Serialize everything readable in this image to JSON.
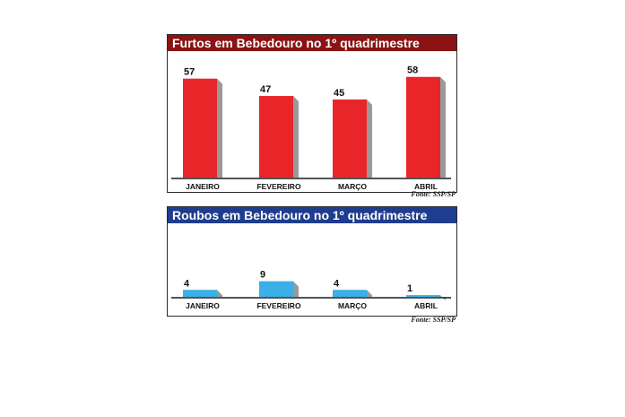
{
  "chart_data": [
    {
      "type": "bar",
      "title": "Furtos em Bebedouro no 1º quadrimestre",
      "categories": [
        "JANEIRO",
        "FEVEREIRO",
        "MARÇO",
        "ABRIL"
      ],
      "values": [
        57,
        47,
        45,
        58
      ],
      "source": "Fonte: SSP/SP",
      "ylim": [
        0,
        62
      ],
      "grid": false,
      "bar_color": "#e8262a",
      "shadow_color": "#9a9a9a",
      "header_color": "#8b1313"
    },
    {
      "type": "bar",
      "title": "Roubos em Bebedouro no 1º quadrimestre",
      "categories": [
        "JANEIRO",
        "FEVEREIRO",
        "MARÇO",
        "ABRIL"
      ],
      "values": [
        4,
        9,
        4,
        1
      ],
      "source": "Fonte: SSP/SP",
      "ylim": [
        0,
        62
      ],
      "grid": false,
      "bar_color": "#3ab0e6",
      "shadow_color": "#9a9a9a",
      "header_color": "#1f3d8f"
    }
  ]
}
